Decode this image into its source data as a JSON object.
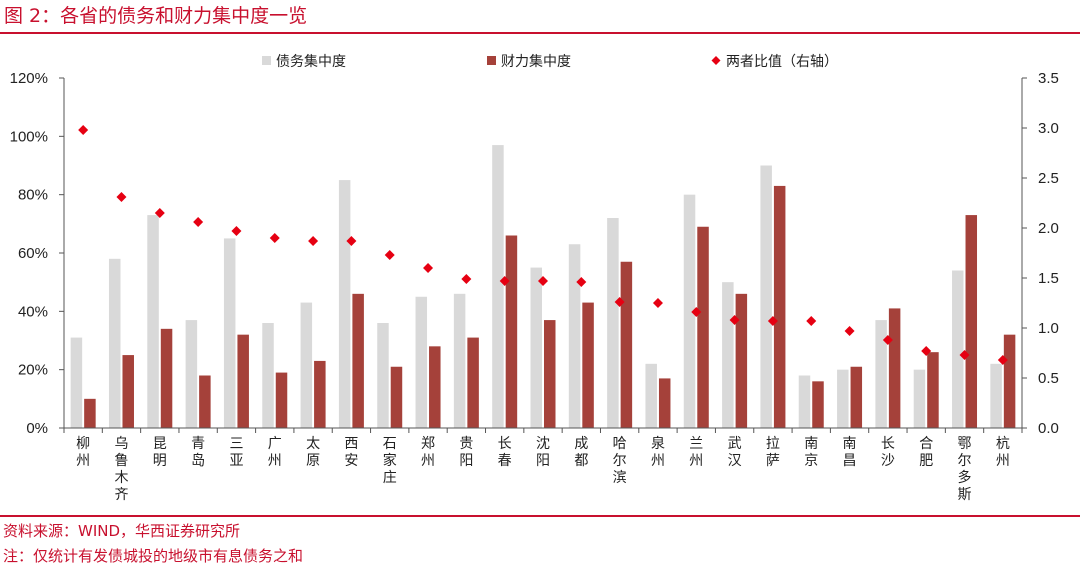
{
  "header": {
    "title": "图 2：各省的债务和财力集中度一览"
  },
  "footer": {
    "source": "资料来源：WIND，华西证券研究所",
    "note": "注：仅统计有发债城投的地级市有息债务之和"
  },
  "colors": {
    "accent": "#c8102e",
    "debt": "#d9d9d9",
    "fiscal": "#a5413a",
    "ratio": "#e60012"
  },
  "chart_data": {
    "type": "bar",
    "categories": [
      "柳州",
      "乌鲁木齐",
      "昆明",
      "青岛",
      "三亚",
      "广州",
      "太原",
      "西安",
      "石家庄",
      "郑州",
      "贵阳",
      "长春",
      "沈阳",
      "成都",
      "哈尔滨",
      "泉州",
      "兰州",
      "武汉",
      "拉萨",
      "南京",
      "南昌",
      "长沙",
      "合肥",
      "鄂尔多斯",
      "杭州"
    ],
    "series": [
      {
        "name": "债务集中度",
        "type": "bar",
        "axis": "left",
        "values": [
          0.31,
          0.58,
          0.73,
          0.37,
          0.65,
          0.36,
          0.43,
          0.85,
          0.36,
          0.45,
          0.46,
          0.97,
          0.55,
          0.63,
          0.72,
          0.22,
          0.8,
          0.5,
          0.9,
          0.18,
          0.2,
          0.37,
          0.2,
          0.54,
          0.22
        ]
      },
      {
        "name": "财力集中度",
        "type": "bar",
        "axis": "left",
        "values": [
          0.1,
          0.25,
          0.34,
          0.18,
          0.32,
          0.19,
          0.23,
          0.46,
          0.21,
          0.28,
          0.31,
          0.66,
          0.37,
          0.43,
          0.57,
          0.17,
          0.69,
          0.46,
          0.83,
          0.16,
          0.21,
          0.41,
          0.26,
          0.73,
          0.32
        ]
      },
      {
        "name": "两者比值（右轴）",
        "type": "scatter",
        "axis": "right",
        "values": [
          2.98,
          2.31,
          2.15,
          2.06,
          1.97,
          1.9,
          1.87,
          1.87,
          1.73,
          1.6,
          1.49,
          1.47,
          1.47,
          1.46,
          1.26,
          1.25,
          1.16,
          1.08,
          1.07,
          1.07,
          0.97,
          0.88,
          0.77,
          0.73,
          0.68
        ]
      }
    ],
    "y_left": {
      "ylim": [
        0,
        1.2
      ],
      "ticks": [
        "0%",
        "20%",
        "40%",
        "60%",
        "80%",
        "100%",
        "120%"
      ]
    },
    "y_right": {
      "ylim": [
        0,
        3.5
      ],
      "ticks": [
        "0.0",
        "0.5",
        "1.0",
        "1.5",
        "2.0",
        "2.5",
        "3.0",
        "3.5"
      ]
    },
    "legend": "top",
    "grid": false
  }
}
